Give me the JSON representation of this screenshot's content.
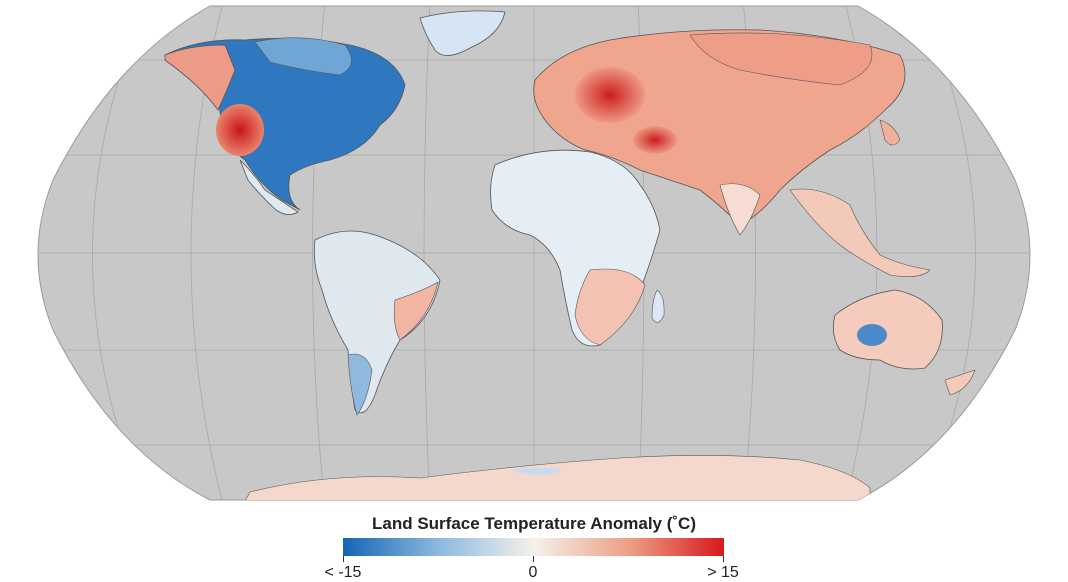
{
  "map": {
    "type": "world-map-robinson",
    "background_ocean": "#c8c8c8",
    "graticule_color": "#a8a8a8",
    "border_color": "#555555"
  },
  "legend": {
    "title": "Land Surface Temperature Anomaly (˚C)",
    "min_label": "< -15",
    "mid_label": "0",
    "max_label": "> 15",
    "colors": {
      "cold": "#1565b5",
      "neutral": "#f4f1ec",
      "warm": "#d7191c"
    }
  }
}
